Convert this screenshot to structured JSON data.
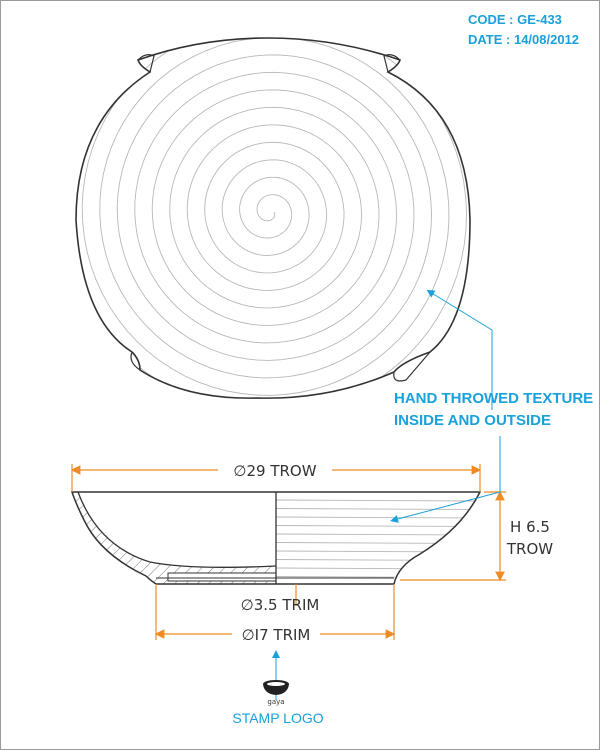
{
  "header": {
    "code": "CODE : GE-433",
    "date": "DATE : 14/08/2012"
  },
  "note": {
    "line1": "HAND THROWED TEXTURE",
    "line2": "INSIDE AND OUTSIDE"
  },
  "dimensions": {
    "top_diameter": "∅29 TROW",
    "height_line1": "H 6.5",
    "height_line2": "TROW",
    "foot_diameter": "∅3.5 TRIM",
    "base_diameter": "∅I7 TRIM"
  },
  "stamp": {
    "brand": "gaya",
    "label": "STAMP LOGO"
  },
  "colors": {
    "accent": "#1aa0dc",
    "dimension": "#f08a24",
    "line": "#333333",
    "texture": "#b8b8b8"
  }
}
